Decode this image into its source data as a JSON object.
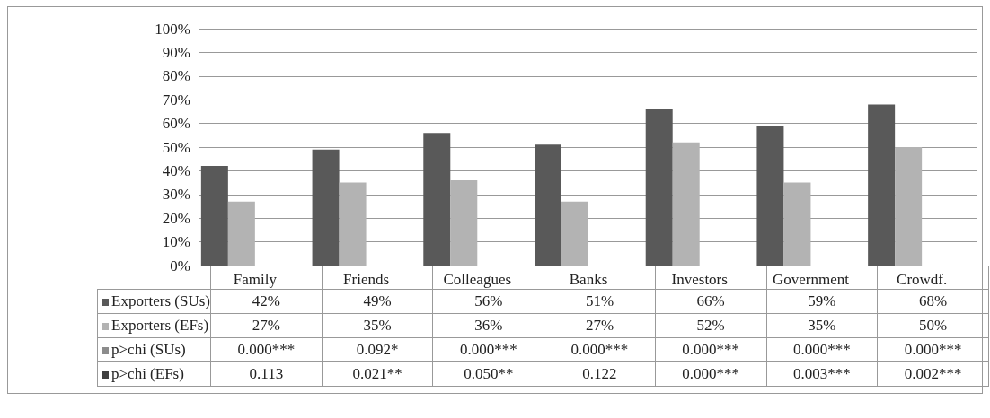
{
  "chart_data": {
    "type": "bar",
    "categories": [
      "Family",
      "Friends",
      "Colleagues",
      "Banks",
      "Investors",
      "Government",
      "Crowdf."
    ],
    "series": [
      {
        "name": "Exporters (SUs)",
        "color": "#595959",
        "values": [
          42,
          49,
          56,
          51,
          66,
          59,
          68
        ],
        "value_labels": [
          "42%",
          "49%",
          "56%",
          "51%",
          "66%",
          "59%",
          "68%"
        ]
      },
      {
        "name": "Exporters (EFs)",
        "color": "#b3b3b3",
        "values": [
          27,
          35,
          36,
          27,
          52,
          35,
          50
        ],
        "value_labels": [
          "27%",
          "35%",
          "36%",
          "27%",
          "52%",
          "35%",
          "50%"
        ]
      },
      {
        "name": "p>chi (SUs)",
        "color": "#8c8c8c",
        "values": [
          null,
          null,
          null,
          null,
          null,
          null,
          null
        ],
        "value_labels": [
          "0.000***",
          "0.092*",
          "0.000***",
          "0.000***",
          "0.000***",
          "0.000***",
          "0.000***"
        ]
      },
      {
        "name": "p>chi (EFs)",
        "color": "#404040",
        "values": [
          null,
          null,
          null,
          null,
          null,
          null,
          null
        ],
        "value_labels": [
          "0.113",
          "0.021**",
          "0.050**",
          "0.122",
          "0.000***",
          "0.003***",
          "0.002***"
        ]
      }
    ],
    "ylim": [
      0,
      100
    ],
    "yticks": [
      {
        "value": 0,
        "label": "0%"
      },
      {
        "value": 10,
        "label": "10%"
      },
      {
        "value": 20,
        "label": "20%"
      },
      {
        "value": 30,
        "label": "30%"
      },
      {
        "value": 40,
        "label": "40%"
      },
      {
        "value": 50,
        "label": "50%"
      },
      {
        "value": 60,
        "label": "60%"
      },
      {
        "value": 70,
        "label": "70%"
      },
      {
        "value": 80,
        "label": "80%"
      },
      {
        "value": 90,
        "label": "90%"
      },
      {
        "value": 100,
        "label": "100%"
      }
    ],
    "grid": "y",
    "legend": "bottom"
  }
}
